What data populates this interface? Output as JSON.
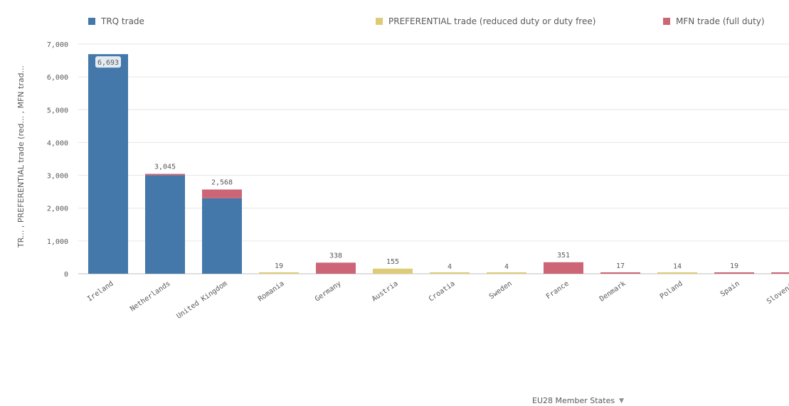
{
  "legend": {
    "trq": "TRQ trade",
    "preferential": "PREFERENTIAL trade (reduced duty or duty free)",
    "mfn": "MFN trade (full duty)"
  },
  "axes": {
    "y_title": "TR... , PREFERENTIAL trade (red... , MFN trad...",
    "x_title": "EU28 Member States"
  },
  "colors": {
    "trq": "#4477aa",
    "preferential": "#ddcc77",
    "mfn": "#cc6677",
    "grid": "#e6e6e6",
    "text": "#595959"
  },
  "chart_data": {
    "type": "bar",
    "stacked": true,
    "categories": [
      "Ireland",
      "Netherlands",
      "United Kingdom",
      "Romania",
      "Germany",
      "Austria",
      "Croatia",
      "Sweden",
      "France",
      "Denmark",
      "Poland",
      "Spain",
      "Slovenia"
    ],
    "series": [
      {
        "name": "TRQ trade",
        "color": "#4477aa",
        "values": [
          6693,
          3000,
          2300,
          0,
          0,
          0,
          0,
          0,
          0,
          0,
          0,
          0,
          0
        ]
      },
      {
        "name": "PREFERENTIAL trade (reduced duty or duty free)",
        "color": "#ddcc77",
        "values": [
          0,
          0,
          0,
          19,
          0,
          155,
          4,
          4,
          0,
          0,
          14,
          0,
          0
        ]
      },
      {
        "name": "MFN trade (full duty)",
        "color": "#cc6677",
        "values": [
          0,
          45,
          268,
          0,
          338,
          0,
          0,
          0,
          351,
          17,
          0,
          19,
          8
        ]
      }
    ],
    "totals": [
      "6,693",
      "3,045",
      "2,568",
      "19",
      "338",
      "155",
      "4",
      "4",
      "351",
      "17",
      "14",
      "19",
      "8"
    ],
    "yticks": [
      "0",
      "1,000",
      "2,000",
      "3,000",
      "4,000",
      "5,000",
      "6,000",
      "7,000"
    ],
    "ylim": [
      0,
      7000
    ],
    "xlabel": "EU28 Member States",
    "ylabel": "TR... , PREFERENTIAL trade (red... , MFN trad...",
    "grid": true,
    "legend_position": "top"
  }
}
